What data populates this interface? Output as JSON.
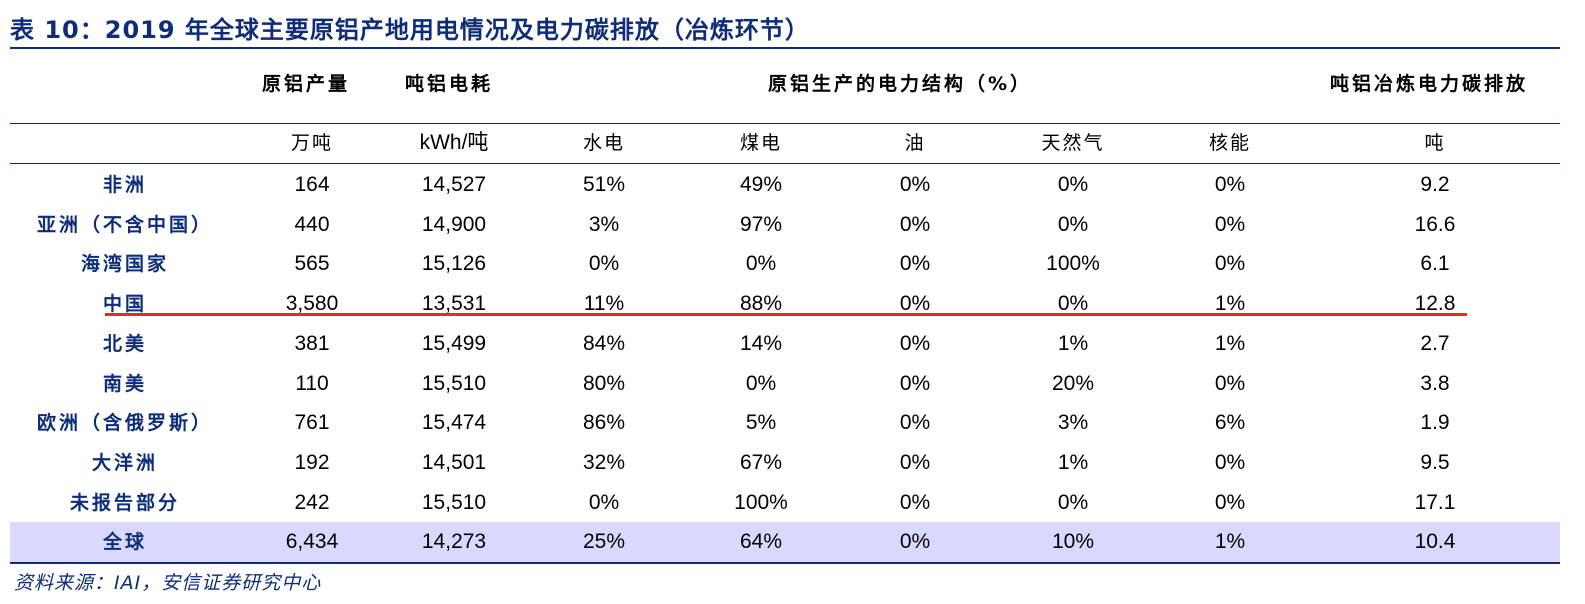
{
  "title": "表 10：2019 年全球主要原铝产地用电情况及电力碳排放（冶炼环节）",
  "header": {
    "production": "原铝产量",
    "power_per_ton": "吨铝电耗",
    "power_structure": "原铝生产的电力结构（%）",
    "carbon": "吨铝冶炼电力碳排放"
  },
  "units": [
    "万吨",
    "kWh/吨",
    "水电",
    "煤电",
    "油",
    "天然气",
    "核能",
    "吨"
  ],
  "rows": [
    {
      "region": "非洲",
      "cells": [
        "164",
        "14,527",
        "51%",
        "49%",
        "0%",
        "0%",
        "0%",
        "9.2"
      ]
    },
    {
      "region": "亚洲（不含中国）",
      "cells": [
        "440",
        "14,900",
        "3%",
        "97%",
        "0%",
        "0%",
        "0%",
        "16.6"
      ]
    },
    {
      "region": "海湾国家",
      "cells": [
        "565",
        "15,126",
        "0%",
        "0%",
        "0%",
        "100%",
        "0%",
        "6.1"
      ]
    },
    {
      "region": "中国",
      "cells": [
        "3,580",
        "13,531",
        "11%",
        "88%",
        "0%",
        "0%",
        "1%",
        "12.8"
      ]
    },
    {
      "region": "北美",
      "cells": [
        "381",
        "15,499",
        "84%",
        "14%",
        "0%",
        "1%",
        "1%",
        "2.7"
      ]
    },
    {
      "region": "南美",
      "cells": [
        "110",
        "15,510",
        "80%",
        "0%",
        "0%",
        "20%",
        "0%",
        "3.8"
      ]
    },
    {
      "region": "欧洲（含俄罗斯）",
      "cells": [
        "761",
        "15,474",
        "86%",
        "5%",
        "0%",
        "3%",
        "6%",
        "1.9"
      ]
    },
    {
      "region": "大洋洲",
      "cells": [
        "192",
        "14,501",
        "32%",
        "67%",
        "0%",
        "1%",
        "0%",
        "9.5"
      ]
    },
    {
      "region": "未报告部分",
      "cells": [
        "242",
        "15,510",
        "0%",
        "100%",
        "0%",
        "0%",
        "0%",
        "17.1"
      ]
    }
  ],
  "total": {
    "region": "全球",
    "cells": [
      "6,434",
      "14,273",
      "25%",
      "64%",
      "0%",
      "10%",
      "1%",
      "10.4"
    ]
  },
  "source": "资料来源：IAI，安信证券研究中心",
  "colors": {
    "accent": "#0d2d7a",
    "highlight_row": "#d9d9ff",
    "red_line": "#e8272b"
  }
}
